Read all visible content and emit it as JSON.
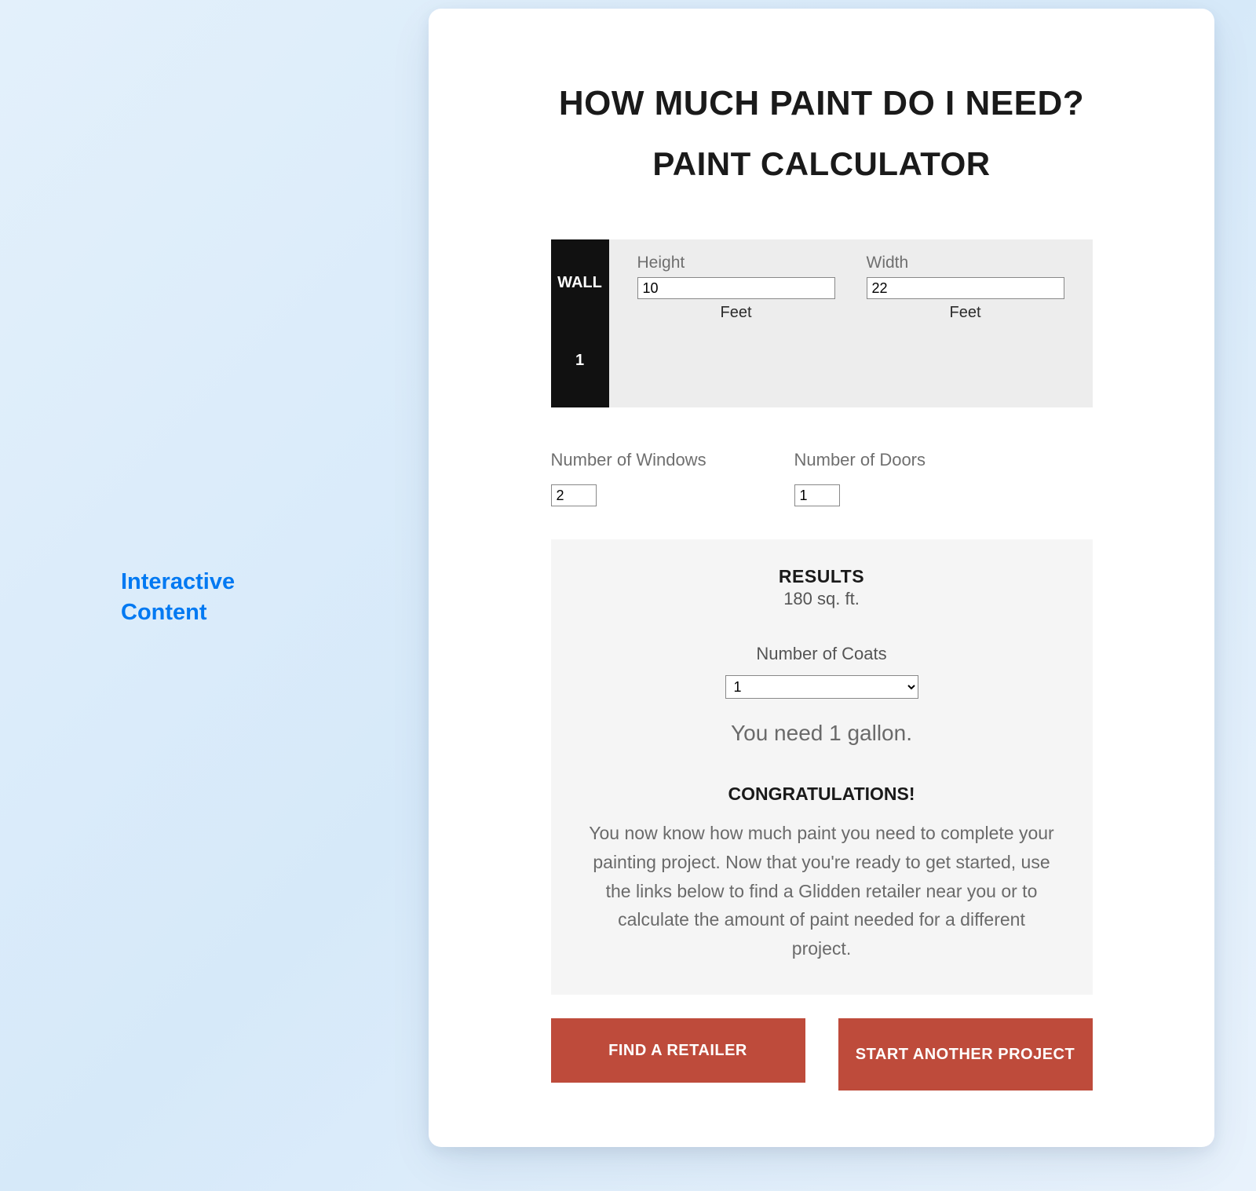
{
  "sideLabel": {
    "line1": "Interactive",
    "line2": "Content"
  },
  "header": {
    "title1": "HOW MUCH PAINT DO I NEED?",
    "title2": "PAINT CALCULATOR"
  },
  "wall": {
    "label": "WALL",
    "number": "1",
    "height": {
      "label": "Height",
      "value": "10",
      "unit": "Feet"
    },
    "width": {
      "label": "Width",
      "value": "22",
      "unit": "Feet"
    }
  },
  "counts": {
    "windows": {
      "label": "Number of Windows",
      "value": "2"
    },
    "doors": {
      "label": "Number of Doors",
      "value": "1"
    }
  },
  "results": {
    "title": "RESULTS",
    "area": "180 sq. ft.",
    "coatsLabel": "Number of Coats",
    "coatsValue": "1",
    "need": "You need 1 gallon.",
    "congratsTitle": "CONGRATULATIONS!",
    "congratsBody": "You now know how much paint you need to complete your painting project. Now that you're ready to get started, use the links below to find a Glidden retailer near you or to calculate the amount of paint needed for a different project."
  },
  "buttons": {
    "findRetailer": "FIND A RETAILER",
    "startAnother": "START ANOTHER PROJECT"
  },
  "colors": {
    "pageBg": "#e3f0fb",
    "accentBlue": "#0079f2",
    "panelBg": "#ededed",
    "resultsBg": "#f5f5f5",
    "buttonBg": "#be4b3b",
    "wallTabBg": "#111111",
    "textMuted": "#6f6f6f",
    "textBody": "#6a6a6a",
    "cardBg": "#ffffff"
  }
}
